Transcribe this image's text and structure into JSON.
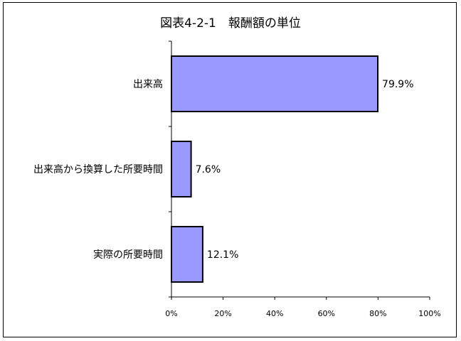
{
  "chart_data": {
    "type": "bar",
    "orientation": "horizontal",
    "title": "図表4-2-1　報酬額の単位",
    "categories": [
      "出来高",
      "出来高から換算した所要時間",
      "実際の所要時間"
    ],
    "values": [
      79.9,
      7.6,
      12.1
    ],
    "data_labels": [
      "79.9%",
      "7.6%",
      "12.1%"
    ],
    "xlim": [
      0,
      100
    ],
    "x_ticks": [
      0,
      20,
      40,
      60,
      80,
      100
    ],
    "x_tick_labels": [
      "0%",
      "20%",
      "40%",
      "60%",
      "80%",
      "100%"
    ],
    "xlabel": "",
    "ylabel": "",
    "grid": false,
    "legend": "none",
    "bar_color": "#9999ff",
    "bar_edge_color": "#000000"
  }
}
